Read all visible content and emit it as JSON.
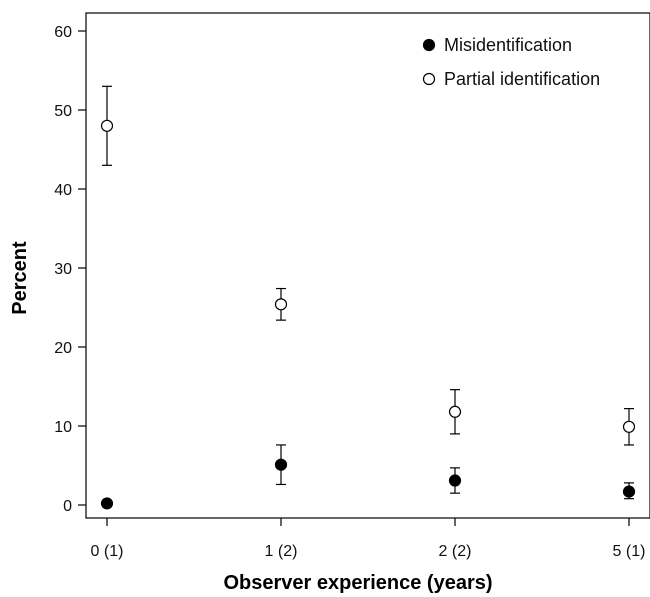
{
  "chart_data": {
    "type": "scatter",
    "categories": [
      "0 (1)",
      "1 (2)",
      "2 (2)",
      "5 (1)"
    ],
    "xlabel": "Observer experience (years)",
    "ylabel": "Percent",
    "ylim": [
      -1.5,
      63
    ],
    "yticks": [
      0,
      10,
      20,
      30,
      40,
      50,
      60
    ],
    "grid": false,
    "legend_position": "top-right",
    "series": [
      {
        "name": "Misidentification",
        "marker": "filled-circle",
        "values": [
          0.2,
          5.1,
          3.1,
          1.7
        ],
        "err_low": [
          0.2,
          2.6,
          1.5,
          0.8
        ],
        "err_high": [
          0.2,
          7.6,
          4.7,
          2.8
        ]
      },
      {
        "name": "Partial identification",
        "marker": "open-circle",
        "values": [
          48.0,
          25.4,
          11.8,
          9.9
        ],
        "err_low": [
          43.0,
          23.4,
          9.0,
          7.6
        ],
        "err_high": [
          53.0,
          27.4,
          14.6,
          12.2
        ]
      }
    ]
  }
}
